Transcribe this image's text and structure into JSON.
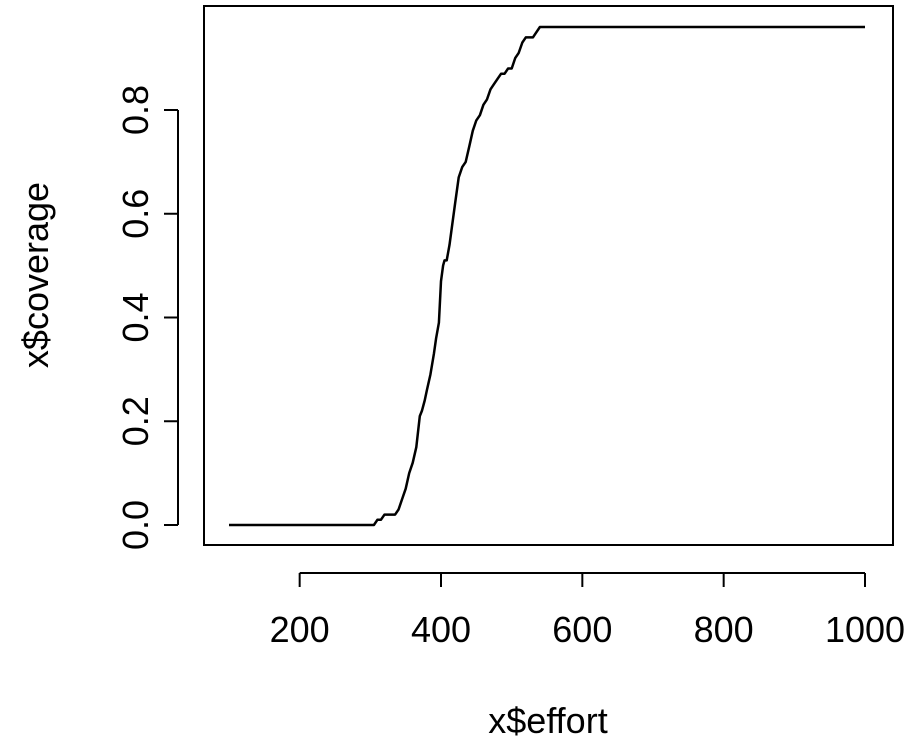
{
  "chart_data": {
    "type": "line",
    "title": "",
    "xlabel": "x$effort",
    "ylabel": "x$coverage",
    "xlim": [
      100,
      1000
    ],
    "ylim": [
      0,
      0.96
    ],
    "x_ticks": [
      200,
      400,
      600,
      800,
      1000
    ],
    "x_tick_labels": [
      "200",
      "400",
      "600",
      "800",
      "1000"
    ],
    "y_ticks": [
      0,
      0.2,
      0.4,
      0.6,
      0.8
    ],
    "y_tick_labels": [
      "0.0",
      "0.2",
      "0.4",
      "0.6",
      "0.8"
    ],
    "grid": false,
    "legend": "none",
    "line_color": "#000000",
    "series": [
      {
        "x": [
          100,
          300,
          305,
          310,
          315,
          320,
          330,
          335,
          340,
          345,
          350,
          355,
          360,
          365,
          370,
          373,
          377,
          380,
          385,
          390,
          393,
          397,
          400,
          403,
          405,
          408,
          412,
          415,
          420,
          425,
          430,
          435,
          440,
          445,
          450,
          455,
          460,
          465,
          470,
          475,
          480,
          485,
          490,
          495,
          500,
          505,
          510,
          515,
          520,
          525,
          530,
          535,
          540,
          545,
          550,
          555,
          1000
        ],
        "y": [
          0,
          0,
          0,
          0.01,
          0.01,
          0.02,
          0.02,
          0.02,
          0.03,
          0.05,
          0.07,
          0.1,
          0.12,
          0.15,
          0.21,
          0.22,
          0.24,
          0.26,
          0.29,
          0.33,
          0.36,
          0.39,
          0.47,
          0.5,
          0.51,
          0.51,
          0.54,
          0.57,
          0.62,
          0.67,
          0.69,
          0.7,
          0.73,
          0.76,
          0.78,
          0.79,
          0.81,
          0.82,
          0.84,
          0.85,
          0.86,
          0.87,
          0.87,
          0.88,
          0.88,
          0.9,
          0.91,
          0.93,
          0.94,
          0.94,
          0.94,
          0.95,
          0.96,
          0.96,
          0.96,
          0.96,
          0.96
        ]
      }
    ]
  }
}
